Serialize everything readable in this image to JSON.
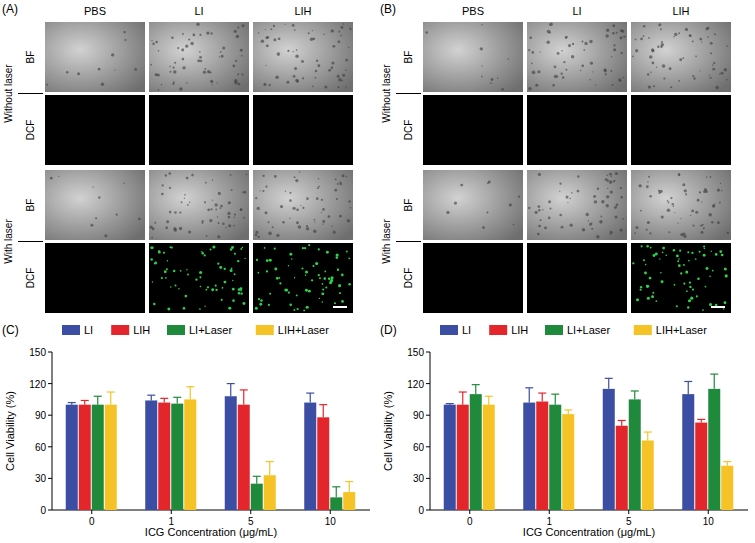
{
  "panels": [
    {
      "label": "(A)",
      "columns": [
        "PBS",
        "LI",
        "LIH"
      ],
      "groups": [
        {
          "label": "Without laser",
          "rows": [
            "BF",
            "DCF"
          ],
          "dcf_signal": [
            false,
            false,
            false
          ]
        },
        {
          "label": "With laser",
          "rows": [
            "BF",
            "DCF"
          ],
          "dcf_signal": [
            false,
            true,
            true
          ]
        }
      ]
    },
    {
      "label": "(B)",
      "columns": [
        "PBS",
        "LI",
        "LIH"
      ],
      "groups": [
        {
          "label": "Without laser",
          "rows": [
            "BF",
            "DCF"
          ],
          "dcf_signal": [
            false,
            false,
            false
          ]
        },
        {
          "label": "With laser",
          "rows": [
            "BF",
            "DCF"
          ],
          "dcf_signal": [
            false,
            false,
            true
          ]
        }
      ]
    }
  ],
  "chart_data": [
    {
      "type": "bar",
      "title": "(C)",
      "x_label": "ICG Concentration (μg/mL)",
      "y_label": "Cell Viability (%)",
      "categories": [
        "0",
        "1",
        "5",
        "10"
      ],
      "ylim": [
        0,
        150
      ],
      "yticks": [
        0,
        30,
        60,
        90,
        120,
        150
      ],
      "legend": "top",
      "series": [
        {
          "name": "LI",
          "color": "#3b4ea3",
          "values": [
            100,
            104,
            108,
            102
          ],
          "errors": [
            2,
            5,
            12,
            9
          ]
        },
        {
          "name": "LIH",
          "color": "#e3262b",
          "values": [
            100,
            102,
            100,
            88
          ],
          "errors": [
            4,
            4,
            14,
            12
          ]
        },
        {
          "name": "LI+Laser",
          "color": "#1f8a3c",
          "values": [
            100,
            101,
            25,
            12
          ],
          "errors": [
            8,
            6,
            7,
            10
          ]
        },
        {
          "name": "LIH+Laser",
          "color": "#f5c325",
          "values": [
            100,
            105,
            33,
            17
          ],
          "errors": [
            12,
            12,
            13,
            10
          ]
        }
      ]
    },
    {
      "type": "bar",
      "title": "(D)",
      "x_label": "ICG Concentration (μg/mL)",
      "y_label": "Cell Viability (%)",
      "categories": [
        "0",
        "1",
        "5",
        "10"
      ],
      "ylim": [
        0,
        150
      ],
      "yticks": [
        0,
        30,
        60,
        90,
        120,
        150
      ],
      "legend": "top",
      "series": [
        {
          "name": "LI",
          "color": "#3b4ea3",
          "values": [
            100,
            102,
            115,
            110
          ],
          "errors": [
            1,
            14,
            10,
            12
          ]
        },
        {
          "name": "LIH",
          "color": "#e3262b",
          "values": [
            100,
            103,
            80,
            83
          ],
          "errors": [
            12,
            8,
            5,
            3
          ]
        },
        {
          "name": "LI+Laser",
          "color": "#1f8a3c",
          "values": [
            110,
            100,
            105,
            115
          ],
          "errors": [
            9,
            10,
            8,
            14
          ]
        },
        {
          "name": "LIH+Laser",
          "color": "#f5c325",
          "values": [
            100,
            91,
            66,
            42
          ],
          "errors": [
            8,
            4,
            8,
            4
          ]
        }
      ]
    }
  ]
}
